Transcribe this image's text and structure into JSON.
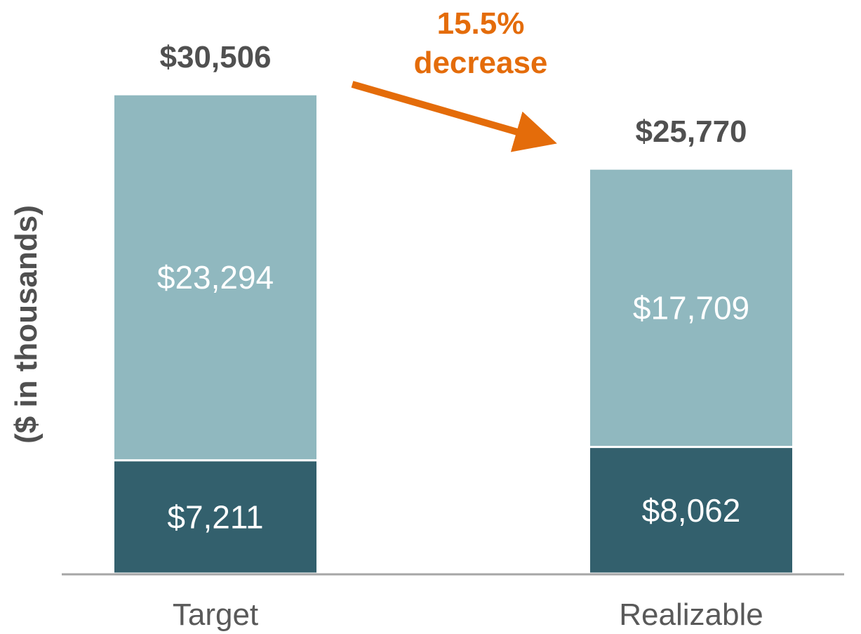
{
  "chart_data": {
    "type": "bar",
    "stacked": true,
    "ylabel": "($ in thousands)",
    "categories": [
      "Target",
      "Realizable"
    ],
    "series": [
      {
        "values": [
          7211,
          8062
        ],
        "color": "#33606d"
      },
      {
        "values": [
          23294,
          17709
        ],
        "color": "#90b8bf"
      }
    ],
    "segment_labels": [
      [
        "$7,211",
        "$8,062"
      ],
      [
        "$23,294",
        "$17,709"
      ]
    ],
    "totals": [
      30506,
      25770
    ],
    "total_labels": [
      "$30,506",
      "$25,770"
    ],
    "ylim": [
      0,
      34000
    ],
    "grid": false,
    "annotation": {
      "lines": [
        "15.5%",
        "decrease"
      ],
      "color": "#e46c0a"
    },
    "colors": {
      "axis": "#a6a6a6",
      "total_text": "#505050",
      "category_text": "#595959"
    }
  }
}
